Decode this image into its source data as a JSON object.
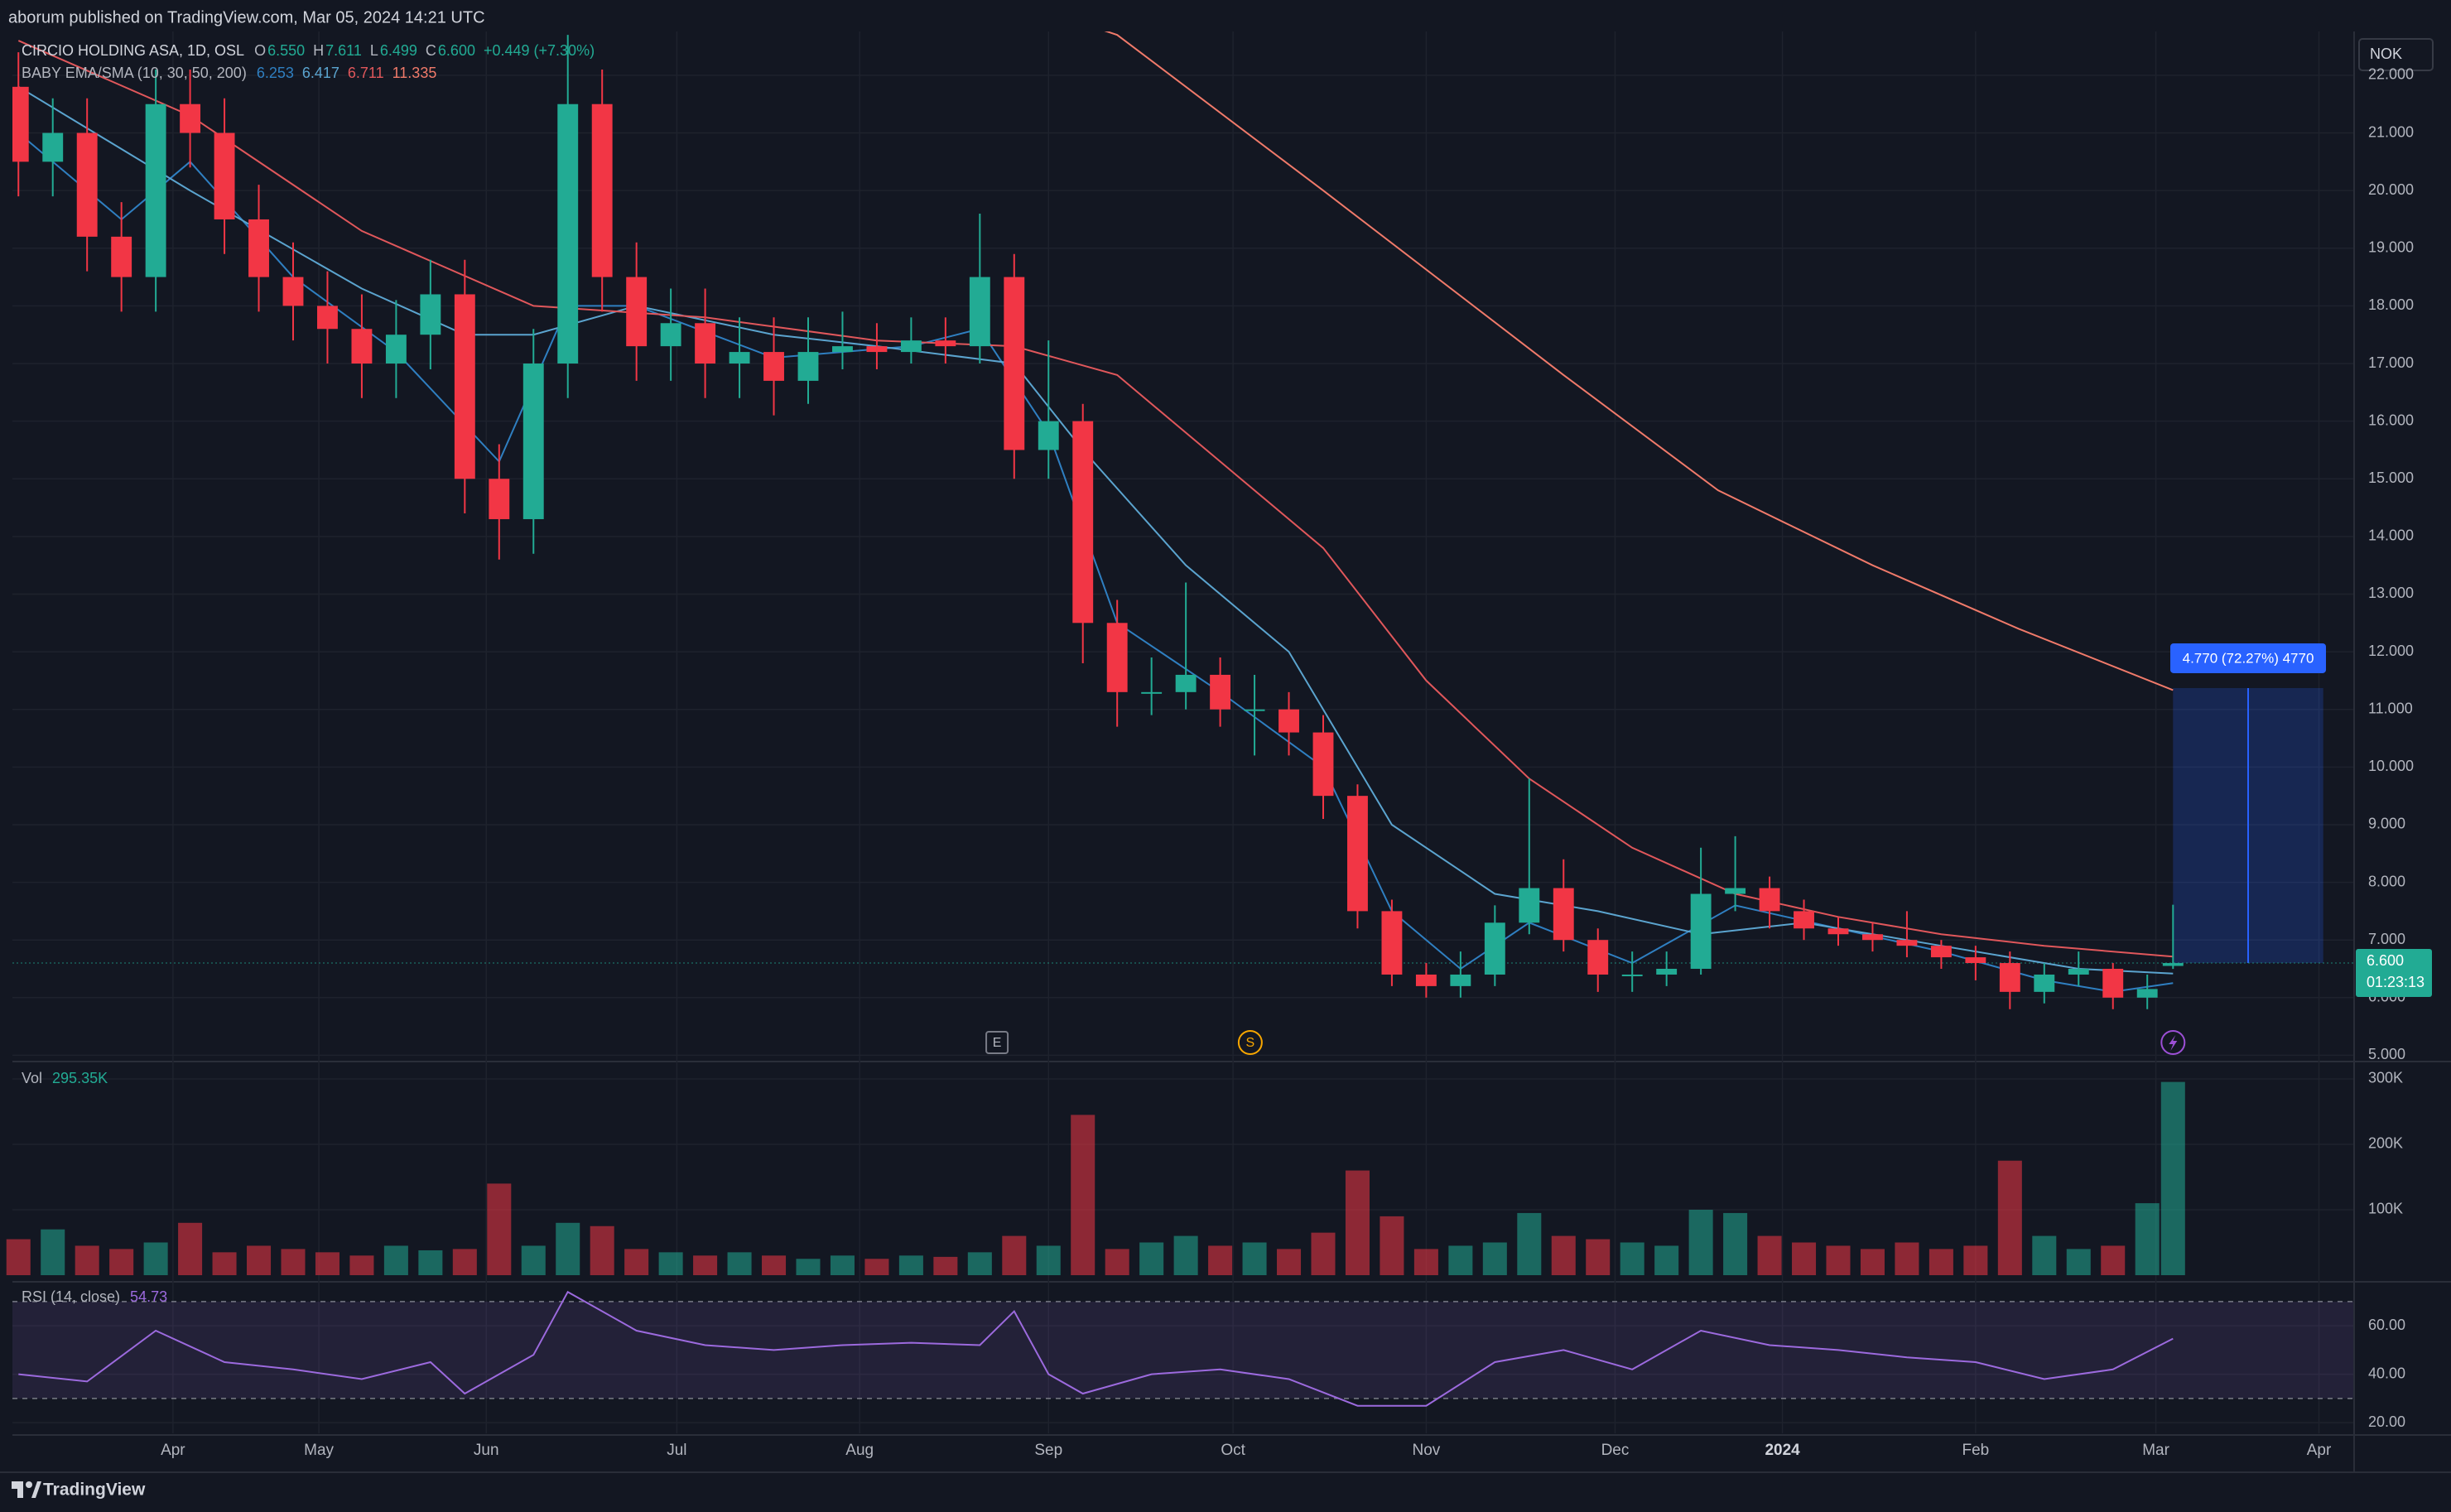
{
  "header": "aborum published on TradingView.com, Mar 05, 2024 14:21 UTC",
  "footer": "TradingView",
  "chart_data": [
    {
      "type": "candlestick",
      "series": [
        {
          "name": "CIRCIO HOLDING ASA, 1D, OSL",
          "up_color": "#22ab94",
          "down_color": "#f23645",
          "x": [
            0,
            4,
            8,
            12,
            16,
            20,
            24,
            28,
            32,
            36,
            40,
            44,
            48,
            52,
            56,
            60,
            64,
            68,
            72,
            76,
            80,
            84,
            88,
            92,
            96,
            100,
            104,
            108,
            112,
            116,
            120,
            124,
            128,
            132,
            136,
            140,
            144,
            148,
            152,
            156,
            160,
            164,
            168,
            172,
            176,
            180,
            184,
            188,
            192,
            196,
            200,
            204,
            208,
            212,
            216,
            220,
            224,
            228,
            232,
            236,
            240,
            244,
            248,
            251
          ],
          "open": [
            21.8,
            20.5,
            21.0,
            19.2,
            18.5,
            21.5,
            21.0,
            19.5,
            18.5,
            18.0,
            17.6,
            17.0,
            17.5,
            18.2,
            15.0,
            14.3,
            17.0,
            21.5,
            18.5,
            17.3,
            17.7,
            17.0,
            17.2,
            16.7,
            17.2,
            17.3,
            17.2,
            17.4,
            17.3,
            18.5,
            15.5,
            16.0,
            12.5,
            11.3,
            11.3,
            11.6,
            11.0,
            11.0,
            10.6,
            9.5,
            7.5,
            6.4,
            6.2,
            6.4,
            7.3,
            7.9,
            7.0,
            6.4,
            6.4,
            6.5,
            7.8,
            7.9,
            7.5,
            7.2,
            7.1,
            7.0,
            6.9,
            6.7,
            6.6,
            6.1,
            6.4,
            6.5,
            6.0,
            6.55
          ],
          "high": [
            22.4,
            21.6,
            21.6,
            19.8,
            22.1,
            22.1,
            21.6,
            20.1,
            19.1,
            18.6,
            18.2,
            18.1,
            18.8,
            18.8,
            15.6,
            17.6,
            22.7,
            22.1,
            19.1,
            18.3,
            18.3,
            17.8,
            17.8,
            17.8,
            17.9,
            17.7,
            17.8,
            17.8,
            19.6,
            18.9,
            17.4,
            16.3,
            12.9,
            11.9,
            13.2,
            11.9,
            11.6,
            11.3,
            10.9,
            9.7,
            7.7,
            6.6,
            6.8,
            7.6,
            9.8,
            8.4,
            7.2,
            6.8,
            6.8,
            8.6,
            8.8,
            8.1,
            7.7,
            7.4,
            7.3,
            7.5,
            7.0,
            6.9,
            6.8,
            6.6,
            6.8,
            6.6,
            6.4,
            7.611
          ],
          "low": [
            19.9,
            19.9,
            18.6,
            17.9,
            17.9,
            20.4,
            18.9,
            17.9,
            17.4,
            17.0,
            16.4,
            16.4,
            16.9,
            14.4,
            13.6,
            13.7,
            16.4,
            17.9,
            16.7,
            16.7,
            16.4,
            16.4,
            16.1,
            16.3,
            16.9,
            16.9,
            17.0,
            17.0,
            17.0,
            15.0,
            15.0,
            11.8,
            10.7,
            10.9,
            11.0,
            10.7,
            10.2,
            10.2,
            9.1,
            7.2,
            6.2,
            6.0,
            6.0,
            6.2,
            7.1,
            6.8,
            6.1,
            6.1,
            6.2,
            6.4,
            7.5,
            7.2,
            7.0,
            6.9,
            6.8,
            6.7,
            6.5,
            6.3,
            5.8,
            5.9,
            6.2,
            5.8,
            5.8,
            6.499
          ],
          "close": [
            20.5,
            21.0,
            19.2,
            18.5,
            21.5,
            21.0,
            19.5,
            18.5,
            18.0,
            17.6,
            17.0,
            17.5,
            18.2,
            15.0,
            14.3,
            17.0,
            21.5,
            18.5,
            17.3,
            17.7,
            17.0,
            17.2,
            16.7,
            17.2,
            17.3,
            17.2,
            17.4,
            17.3,
            18.5,
            15.5,
            16.0,
            12.5,
            11.3,
            11.3,
            11.6,
            11.0,
            11.0,
            10.6,
            9.5,
            7.5,
            6.4,
            6.2,
            6.4,
            7.3,
            7.9,
            7.0,
            6.4,
            6.4,
            6.5,
            7.8,
            7.9,
            7.5,
            7.2,
            7.1,
            7.0,
            6.9,
            6.7,
            6.6,
            6.1,
            6.4,
            6.5,
            6.0,
            6.15,
            6.6
          ]
        }
      ],
      "legend_keys": [
        "O",
        "H",
        "L",
        "C"
      ],
      "legend_labels": [
        "6.550",
        "7.611",
        "6.499",
        "6.600"
      ],
      "change": "+0.449 (+7.30%)",
      "indicator": {
        "name": "BABY EMA/SMA (10, 30, 50, 200)",
        "lines": [
          {
            "color": "#2f7fc1",
            "x": [
              0,
              12,
              20,
              32,
              44,
              56,
              64,
              72,
              88,
              104,
              112,
              120,
              128,
              140,
              152,
              160,
              168,
              176,
              188,
              200,
              212,
              224,
              236,
              244,
              251
            ],
            "values": [
              21,
              19.5,
              20.5,
              18.5,
              17.2,
              15.3,
              18,
              18,
              17.1,
              17.3,
              17.6,
              15.8,
              12.5,
              11.3,
              10.0,
              7.5,
              6.5,
              7.3,
              6.6,
              7.6,
              7.2,
              6.8,
              6.3,
              6.1,
              6.253
            ]
          },
          {
            "color": "#5ba4cf",
            "x": [
              0,
              20,
              40,
              52,
              60,
              72,
              88,
              100,
              116,
              124,
              136,
              148,
              160,
              172,
              184,
              196,
              208,
              224,
              240,
              251
            ],
            "values": [
              21.8,
              20.0,
              18.3,
              17.5,
              17.5,
              18,
              17.5,
              17.3,
              17.0,
              15.5,
              13.5,
              12.0,
              9.0,
              7.8,
              7.5,
              7.1,
              7.3,
              6.9,
              6.5,
              6.417
            ]
          },
          {
            "color": "#e0575b",
            "x": [
              0,
              20,
              40,
              60,
              80,
              100,
              116,
              128,
              140,
              152,
              164,
              176,
              188,
              200,
              212,
              224,
              236,
              251
            ],
            "values": [
              22.6,
              21.3,
              19.3,
              18.0,
              17.8,
              17.4,
              17.3,
              16.8,
              15.3,
              13.8,
              11.5,
              9.8,
              8.6,
              7.8,
              7.4,
              7.1,
              6.9,
              6.711
            ]
          },
          {
            "color": "#f07a6a",
            "x": [
              122,
              128,
              152,
              180,
              198,
              216,
              233,
              251
            ],
            "values": [
              23.0,
              22.7,
              20.0,
              16.8,
              14.8,
              13.5,
              12.4,
              11.335
            ]
          }
        ]
      },
      "xlim": [
        -0.7,
        272
      ],
      "xticks": [
        {
          "value": 18,
          "label": "Apr"
        },
        {
          "value": 35,
          "label": "May"
        },
        {
          "value": 54.5,
          "label": "Jun"
        },
        {
          "value": 76.7,
          "label": "Jul"
        },
        {
          "value": 98,
          "label": "Aug"
        },
        {
          "value": 120,
          "label": "Sep"
        },
        {
          "value": 141.5,
          "label": "Oct"
        },
        {
          "value": 164,
          "label": "Nov"
        },
        {
          "value": 186,
          "label": "Dec"
        },
        {
          "value": 205.5,
          "label": "2024"
        },
        {
          "value": 228,
          "label": "Feb"
        },
        {
          "value": 249,
          "label": "Mar"
        },
        {
          "value": 268,
          "label": "Apr"
        }
      ],
      "ylim": [
        4.92,
        22.76
      ],
      "yticks": [
        {
          "value": 5,
          "label": "5.000"
        },
        {
          "value": 6,
          "label": "6.000"
        },
        {
          "value": 7,
          "label": "7.000"
        },
        {
          "value": 8,
          "label": "8.000"
        },
        {
          "value": 9,
          "label": "9.000"
        },
        {
          "value": 10,
          "label": "10.000"
        },
        {
          "value": 11,
          "label": "11.000"
        },
        {
          "value": 12,
          "label": "12.000"
        },
        {
          "value": 13,
          "label": "13.000"
        },
        {
          "value": 14,
          "label": "14.000"
        },
        {
          "value": 15,
          "label": "15.000"
        },
        {
          "value": 16,
          "label": "16.000"
        },
        {
          "value": 17,
          "label": "17.000"
        },
        {
          "value": 18,
          "label": "18.000"
        },
        {
          "value": 19,
          "label": "19.000"
        },
        {
          "value": 20,
          "label": "20.000"
        },
        {
          "value": 21,
          "label": "21.000"
        },
        {
          "value": 22,
          "label": "22.000"
        }
      ],
      "grid": true,
      "currency": "NOK",
      "last_price": {
        "value": 6.6,
        "label": "6.600"
      },
      "countdown": "01:23:13",
      "events": [
        {
          "label": "E",
          "x": 114
        },
        {
          "label": "S",
          "x": 143.5
        }
      ],
      "measure": {
        "from": 6.6,
        "to": 11.37,
        "x": [
          251,
          268.5
        ],
        "label": "4.770 (72.27%) 4770",
        "color": "#2962ff"
      }
    },
    {
      "type": "bar",
      "title": "Vol",
      "last_label": "295.35K",
      "values": [
        55000,
        70000,
        45000,
        40000,
        50000,
        80000,
        35000,
        45000,
        40000,
        35000,
        30000,
        45000,
        38000,
        40000,
        140000,
        45000,
        80000,
        75000,
        40000,
        35000,
        30000,
        35000,
        30000,
        25000,
        30000,
        25000,
        30000,
        28000,
        35000,
        60000,
        45000,
        245000,
        40000,
        50000,
        60000,
        45000,
        50000,
        40000,
        65000,
        160000,
        90000,
        40000,
        45000,
        50000,
        95000,
        60000,
        55000,
        50000,
        45000,
        100000,
        95000,
        60000,
        50000,
        45000,
        40000,
        50000,
        40000,
        45000,
        175000,
        60000,
        40000,
        45000,
        110000,
        295350
      ],
      "ylim": [
        0,
        324000
      ],
      "yticks": [
        {
          "value": 100000,
          "label": "100K"
        },
        {
          "value": 200000,
          "label": "200K"
        },
        {
          "value": 300000,
          "label": "300K"
        }
      ]
    },
    {
      "type": "line",
      "title": "RSI (14, close)",
      "color": "#9c6ade",
      "x": [
        0,
        8,
        16,
        24,
        32,
        40,
        48,
        52,
        60,
        64,
        72,
        80,
        88,
        96,
        104,
        112,
        116,
        120,
        124,
        132,
        140,
        148,
        156,
        164,
        172,
        180,
        188,
        196,
        204,
        212,
        220,
        228,
        236,
        244,
        251
      ],
      "values": [
        40,
        37,
        58,
        45,
        42,
        38,
        45,
        32,
        48,
        74,
        58,
        52,
        50,
        52,
        53,
        52,
        66,
        40,
        32,
        40,
        42,
        38,
        27,
        27,
        45,
        50,
        42,
        58,
        52,
        50,
        47,
        45,
        38,
        42,
        54.73
      ],
      "bands": [
        30,
        70
      ],
      "ylim": [
        15.6,
        76.8
      ],
      "yticks": [
        {
          "value": 20,
          "label": "20.00"
        },
        {
          "value": 40,
          "label": "40.00"
        },
        {
          "value": 60,
          "label": "60.00"
        }
      ]
    }
  ]
}
